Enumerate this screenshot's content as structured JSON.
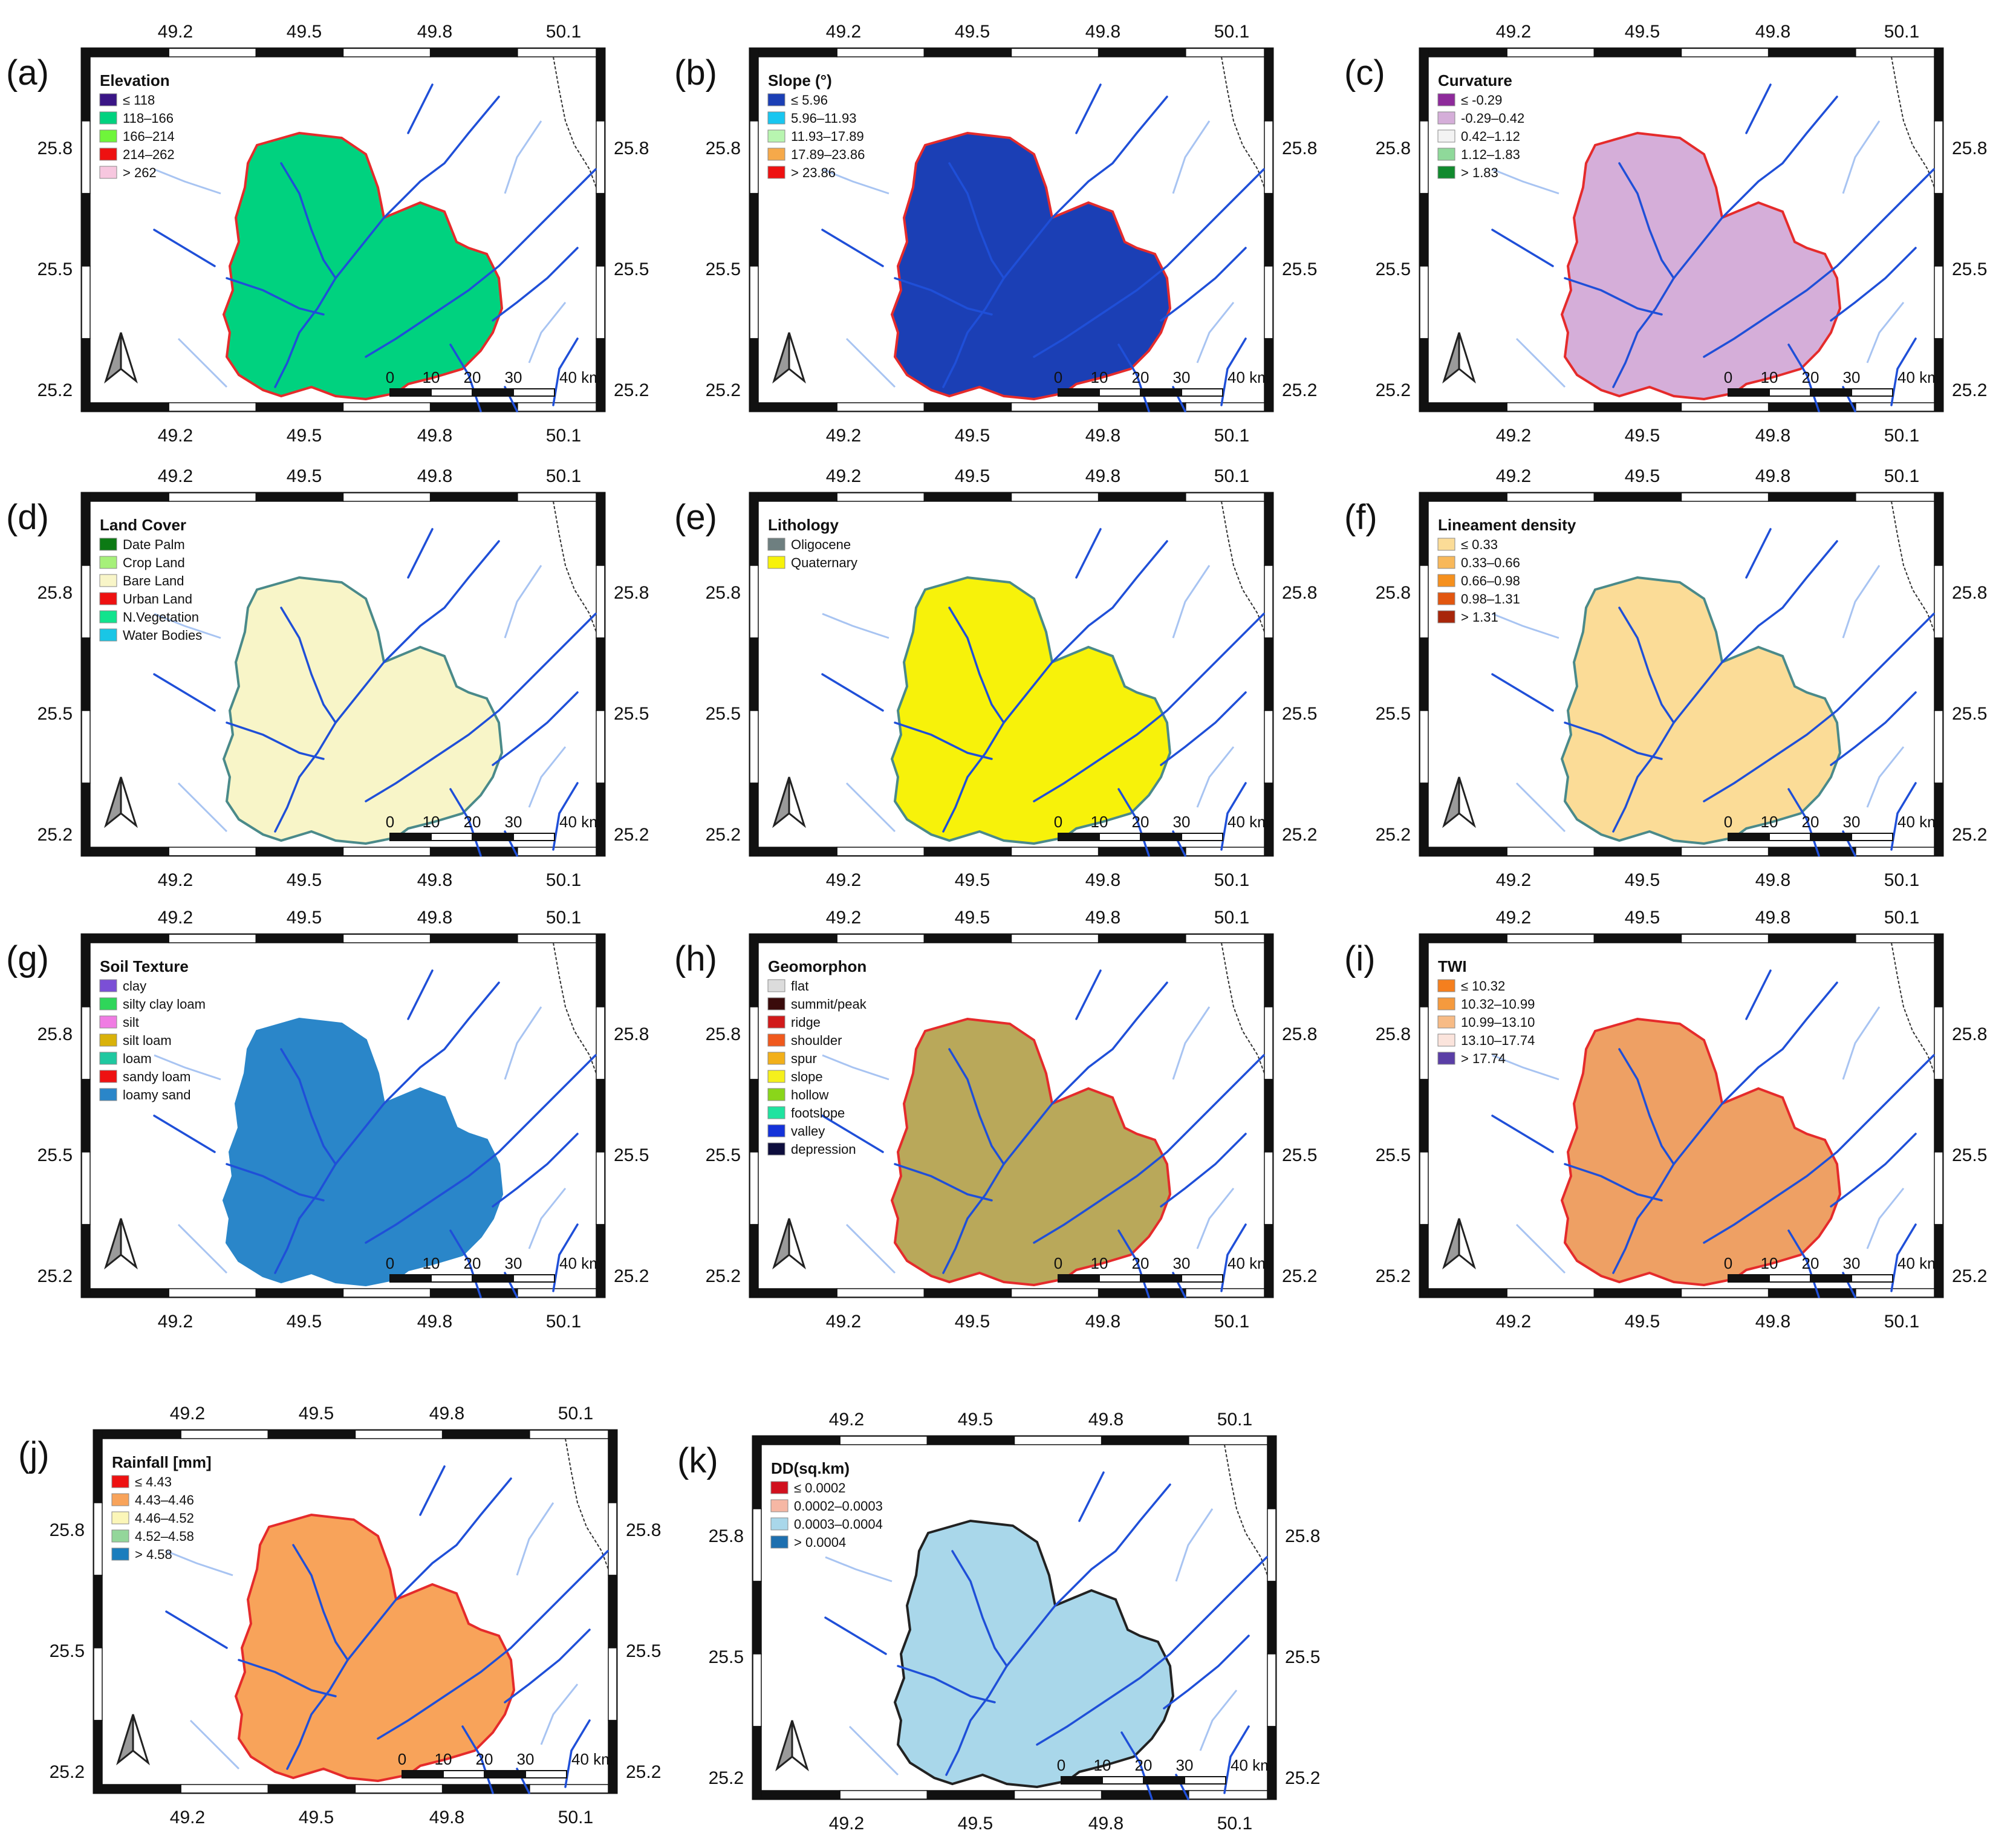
{
  "figure": {
    "tick_values": {
      "lon": [
        "49.2",
        "49.5",
        "49.8",
        "50.1"
      ],
      "lat": [
        "25.8",
        "25.5",
        "25.2"
      ]
    },
    "scale_bar": {
      "labels": [
        "0",
        "10",
        "20",
        "30",
        "40 km"
      ]
    },
    "icons": {
      "north_arrow": "north-arrow-icon"
    },
    "river_color": "#1f4fd8",
    "panels": [
      {
        "id": "a",
        "label": "(a)",
        "legend_title": "Elevation",
        "legend_bold": true,
        "fill": "#00d27f",
        "outline": "#e52b2b",
        "legend": [
          {
            "color": "#3a1586",
            "text": "≤ 118"
          },
          {
            "color": "#00d27f",
            "text": "118–166"
          },
          {
            "color": "#6ff53a",
            "text": "166–214"
          },
          {
            "color": "#ee1111",
            "text": "214–262"
          },
          {
            "color": "#f7c7df",
            "text": "> 262"
          }
        ]
      },
      {
        "id": "b",
        "label": "(b)",
        "legend_title": "Slope (°)",
        "legend_bold": true,
        "fill": "#1b3fb5",
        "outline": "#e52b2b",
        "legend": [
          {
            "color": "#1b3fb5",
            "text": "≤ 5.96"
          },
          {
            "color": "#19c6f0",
            "text": "5.96–11.93"
          },
          {
            "color": "#b8f5b0",
            "text": "11.93–17.89"
          },
          {
            "color": "#f6a94a",
            "text": "17.89–23.86"
          },
          {
            "color": "#ee1111",
            "text": "> 23.86"
          }
        ]
      },
      {
        "id": "c",
        "label": "(c)",
        "legend_title": "Curvature",
        "legend_bold": true,
        "fill": "#d5aed9",
        "outline": "#e52b2b",
        "legend": [
          {
            "color": "#8e2a9b",
            "text": "≤ -0.29"
          },
          {
            "color": "#d5aed9",
            "text": "-0.29–0.42"
          },
          {
            "color": "#f3f3f3",
            "text": "0.42–1.12"
          },
          {
            "color": "#8fd99a",
            "text": "1.12–1.83"
          },
          {
            "color": "#118a2e",
            "text": "> 1.83"
          }
        ]
      },
      {
        "id": "d",
        "label": "(d)",
        "legend_title": "Land Cover",
        "legend_bold": true,
        "fill": "#f8f5c8",
        "outline": "#4a8a8a",
        "legend": [
          {
            "color": "#0c7a14",
            "text": "Date Palm"
          },
          {
            "color": "#a6f07a",
            "text": "Crop Land"
          },
          {
            "color": "#f8f5c8",
            "text": "Bare Land"
          },
          {
            "color": "#ee1111",
            "text": "Urban Land"
          },
          {
            "color": "#12e38d",
            "text": "N.Vegetation"
          },
          {
            "color": "#19c6e6",
            "text": "Water Bodies"
          }
        ]
      },
      {
        "id": "e",
        "label": "(e)",
        "legend_title": "Lithology",
        "legend_bold": true,
        "fill": "#f7f20a",
        "outline": "#4a8a8a",
        "legend": [
          {
            "color": "#6e7f80",
            "text": "Oligocene"
          },
          {
            "color": "#f7f20a",
            "text": "Quaternary"
          }
        ]
      },
      {
        "id": "f",
        "label": "(f)",
        "legend_title": "Lineament density",
        "legend_bold": true,
        "fill": "#fbdc97",
        "outline": "#4a8a8a",
        "legend": [
          {
            "color": "#fbdc97",
            "text": "≤ 0.33"
          },
          {
            "color": "#f8b85a",
            "text": "0.33–0.66"
          },
          {
            "color": "#f5901e",
            "text": "0.66–0.98"
          },
          {
            "color": "#e2560f",
            "text": "0.98–1.31"
          },
          {
            "color": "#a8260a",
            "text": "> 1.31"
          }
        ]
      },
      {
        "id": "g",
        "label": "(g)",
        "legend_title": "Soil Texture",
        "legend_bold": true,
        "fill": "#2a86c9",
        "outline": "#2a86c9",
        "legend": [
          {
            "color": "#7b4fd6",
            "text": "clay"
          },
          {
            "color": "#2fd65a",
            "text": "silty clay loam"
          },
          {
            "color": "#f07ce3",
            "text": "silt"
          },
          {
            "color": "#d9b20a",
            "text": "silt loam"
          },
          {
            "color": "#1fc8a0",
            "text": "loam"
          },
          {
            "color": "#ee1111",
            "text": "sandy loam"
          },
          {
            "color": "#2a86c9",
            "text": "loamy sand"
          }
        ]
      },
      {
        "id": "h",
        "label": "(h)",
        "legend_title": "Geomorphon",
        "legend_bold": true,
        "fill": "#b9a85a",
        "outline": "#e52b2b",
        "legend": [
          {
            "color": "#dcdcdc",
            "text": "flat"
          },
          {
            "color": "#3a0b0b",
            "text": "summit/peak"
          },
          {
            "color": "#d11a1a",
            "text": "ridge"
          },
          {
            "color": "#f0591d",
            "text": "shoulder"
          },
          {
            "color": "#f2b01a",
            "text": "spur"
          },
          {
            "color": "#f5f01c",
            "text": "slope"
          },
          {
            "color": "#8ad61a",
            "text": "hollow"
          },
          {
            "color": "#1fe3a0",
            "text": "footslope"
          },
          {
            "color": "#1432d9",
            "text": "valley"
          },
          {
            "color": "#0d0d3d",
            "text": "depression"
          }
        ]
      },
      {
        "id": "i",
        "label": "(i)",
        "legend_title": "TWI",
        "legend_bold": true,
        "fill": "#eea064",
        "outline": "#e52b2b",
        "legend": [
          {
            "color": "#f57f1e",
            "text": "≤ 10.32"
          },
          {
            "color": "#f59a3e",
            "text": "10.32–10.99"
          },
          {
            "color": "#f7bb85",
            "text": "10.99–13.10"
          },
          {
            "color": "#fbe4dc",
            "text": "13.10–17.74"
          },
          {
            "color": "#5a3ea6",
            "text": "> 17.74"
          }
        ]
      },
      {
        "id": "j",
        "label": "(j)",
        "legend_title": "Rainfall [mm]",
        "legend_bold": true,
        "fill": "#f8a35a",
        "outline": "#e52b2b",
        "legend": [
          {
            "color": "#ee1111",
            "text": "≤ 4.43"
          },
          {
            "color": "#f8a35a",
            "text": "4.43–4.46"
          },
          {
            "color": "#fbf6b8",
            "text": "4.46–4.52"
          },
          {
            "color": "#93d69a",
            "text": "4.52–4.58"
          },
          {
            "color": "#1a7dbd",
            "text": "> 4.58"
          }
        ]
      },
      {
        "id": "k",
        "label": "(k)",
        "legend_title": "DD(sq.km)",
        "legend_bold": true,
        "fill": "#a9d7ea",
        "outline": "#222222",
        "legend": [
          {
            "color": "#d1101e",
            "text": "≤ 0.0002"
          },
          {
            "color": "#f6b7a4",
            "text": "0.0002–0.0003"
          },
          {
            "color": "#a9d7ea",
            "text": "0.0003–0.0004"
          },
          {
            "color": "#1d6faf",
            "text": "> 0.0004"
          }
        ]
      }
    ]
  }
}
